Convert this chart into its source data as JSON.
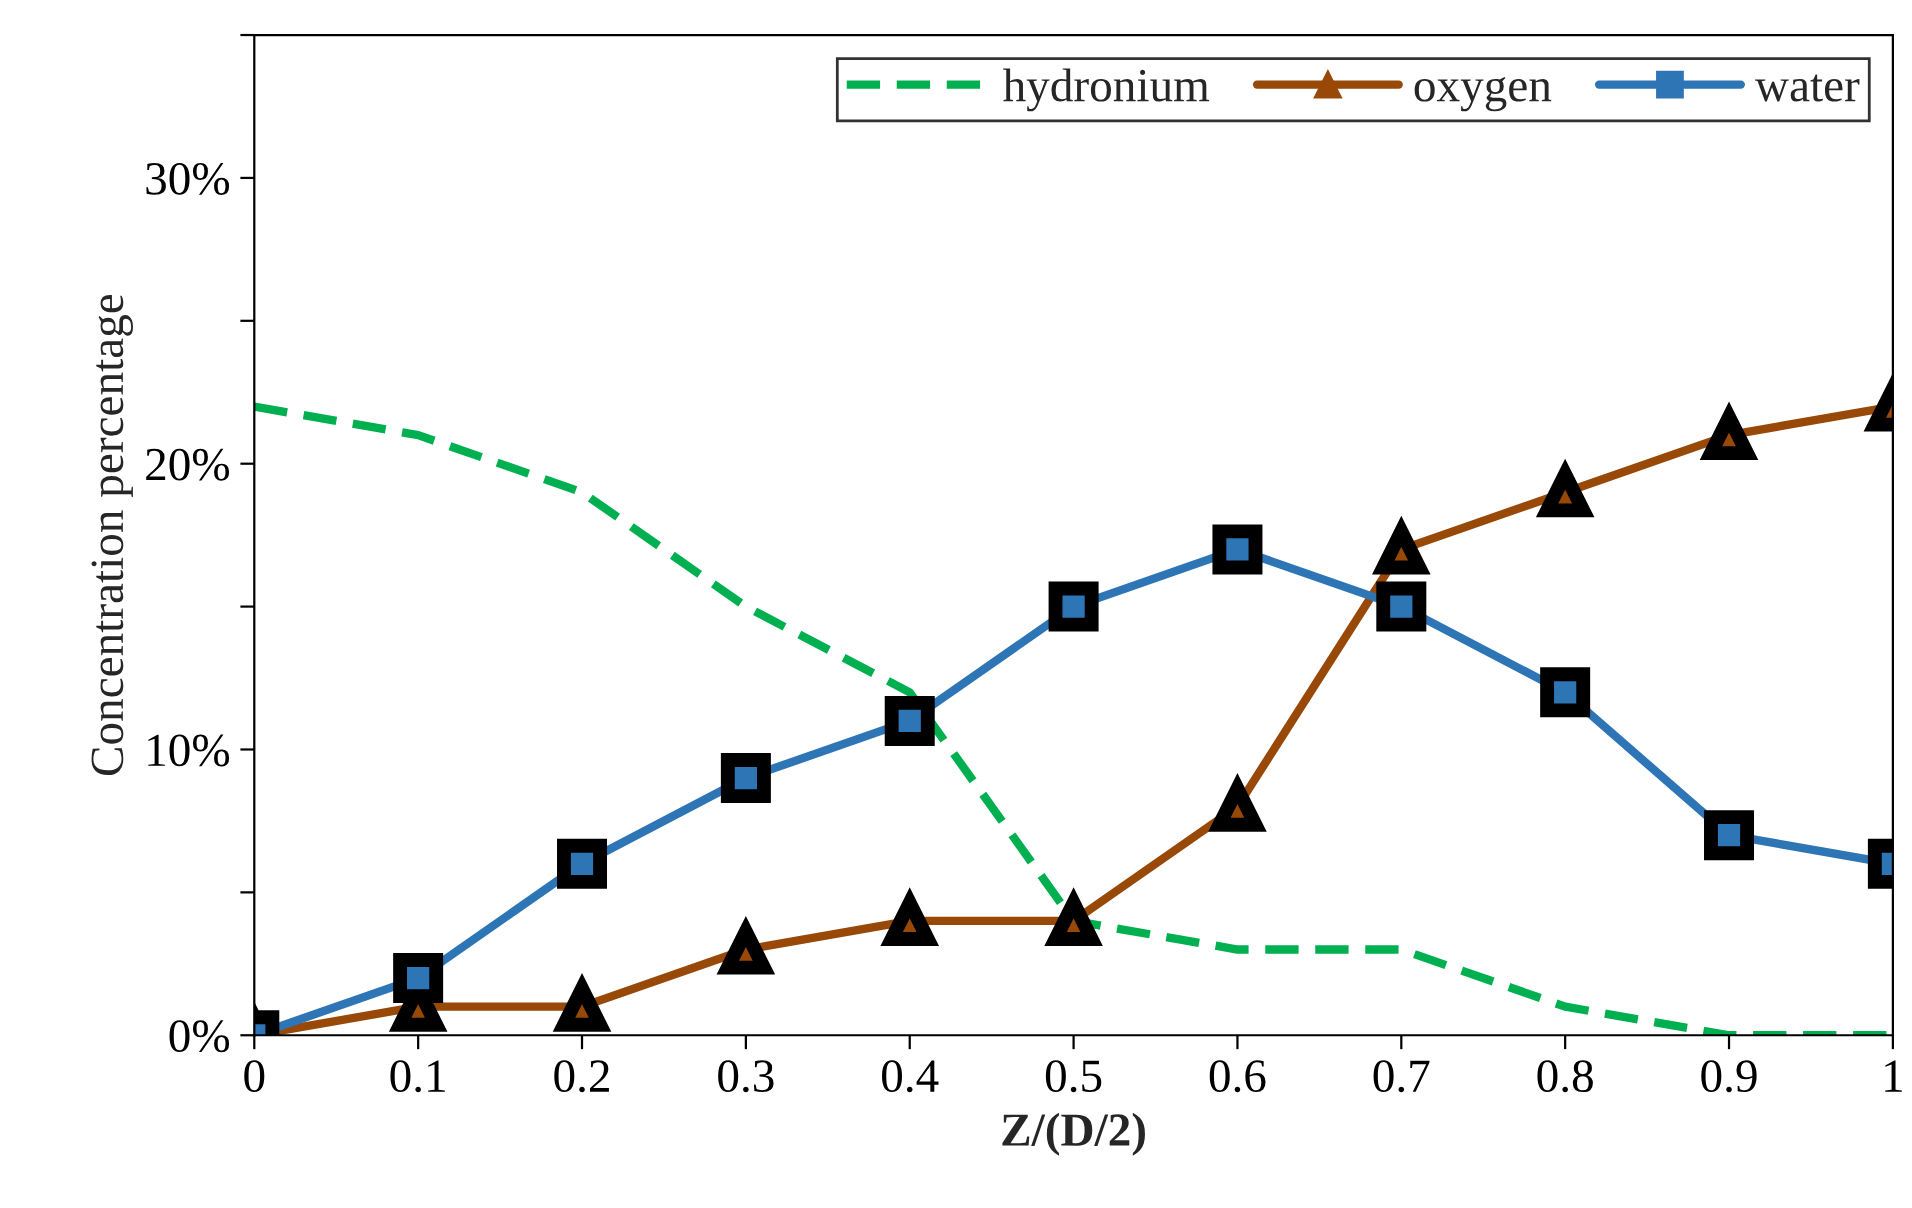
{
  "chart_data": {
    "type": "line",
    "xlabel": "Z/(D/2)",
    "ylabel": "Concentration percentage",
    "x": [
      0,
      0.1,
      0.2,
      0.3,
      0.4,
      0.5,
      0.6,
      0.7,
      0.8,
      0.9,
      1
    ],
    "series": [
      {
        "name": "hydronium",
        "color": "#00b050",
        "line_style": "dashed",
        "marker": "none",
        "values": [
          22,
          21,
          19,
          15,
          12,
          4,
          3,
          3,
          1,
          0,
          0
        ]
      },
      {
        "name": "oxygen",
        "color": "#984807",
        "line_style": "solid",
        "marker": "triangle",
        "values": [
          0,
          1,
          1,
          3,
          4,
          4,
          8,
          17,
          19,
          21,
          22
        ]
      },
      {
        "name": "water",
        "color": "#2e75b6",
        "line_style": "solid",
        "marker": "square",
        "values": [
          0,
          2,
          6,
          9,
          11,
          15,
          17,
          15,
          12,
          7,
          6
        ]
      }
    ],
    "xlim": [
      0,
      1
    ],
    "ylim": [
      0,
      35
    ],
    "xticks": [
      {
        "value": 0,
        "label": "0"
      },
      0.1,
      0.2,
      0.3,
      0.4,
      0.5,
      0.6,
      0.7,
      0.8,
      0.9,
      {
        "value": 1,
        "label": "1"
      }
    ],
    "yticks": [
      {
        "value": 0,
        "label": "0%"
      },
      {
        "value": 5,
        "label": null
      },
      {
        "value": 10,
        "label": "10%"
      },
      {
        "value": 15,
        "label": null
      },
      {
        "value": 20,
        "label": "20%"
      },
      {
        "value": 25,
        "label": null
      },
      {
        "value": 30,
        "label": "30%"
      },
      {
        "value": 35,
        "label": null
      }
    ],
    "grid": false,
    "legend": "top right"
  }
}
